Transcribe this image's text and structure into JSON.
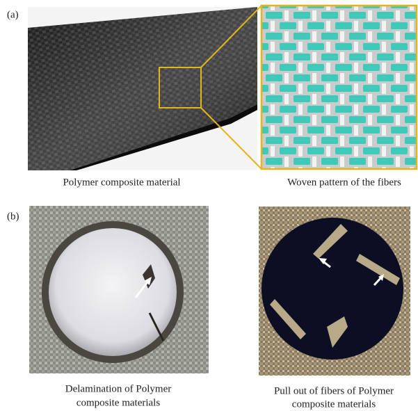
{
  "panels": [
    {
      "label": "(a)",
      "images": [
        {
          "caption": [
            "Polymer composite material"
          ]
        },
        {
          "caption": [
            "Woven pattern of the fibers"
          ]
        }
      ]
    },
    {
      "label": "(b)",
      "images": [
        {
          "caption": [
            "Delamination of Polymer",
            "composite materials"
          ]
        },
        {
          "caption": [
            "Pull out of fibers of Polymer",
            "composite materials"
          ]
        }
      ]
    }
  ]
}
